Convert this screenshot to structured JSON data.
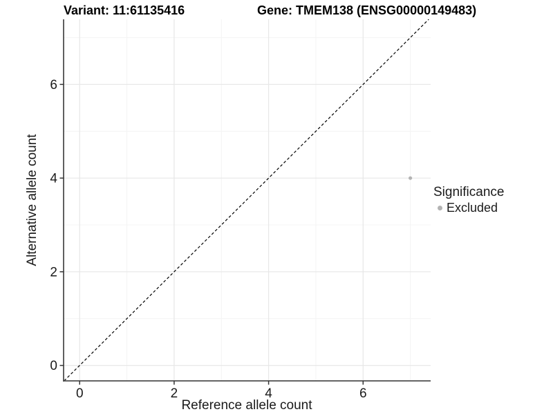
{
  "chart_data": {
    "type": "scatter",
    "title_variant": "Variant: 11:61135416",
    "title_gene": "Gene: TMEM138 (ENSG00000149483)",
    "xlabel": "Reference allele count",
    "ylabel": "Alternative allele count",
    "xticks": [
      0,
      2,
      4,
      6
    ],
    "yticks": [
      0,
      2,
      4,
      6
    ],
    "xticks_minor": [
      1,
      3,
      5,
      7
    ],
    "yticks_minor": [
      1,
      3,
      5,
      7
    ],
    "xlim": [
      -0.34,
      7.43
    ],
    "ylim": [
      -0.33,
      7.39
    ],
    "grid": "major and minor, light gray on white",
    "identity_line": {
      "equation": "y = x",
      "style": "dashed",
      "color": "#000000"
    },
    "points": [
      {
        "x": 7,
        "y": 4,
        "series": "Excluded"
      }
    ],
    "legend": {
      "title": "Significance",
      "position": "right",
      "entries": [
        {
          "label": "Excluded",
          "color": "#b3b3b3"
        }
      ]
    },
    "style": {
      "point": "#b3b3b3",
      "point_radius": 2.6,
      "grid_major": "#e8e8e8",
      "grid_minor": "#f4f4f4",
      "axis": "#4d4d4d",
      "tick": "#333333",
      "text": "#1a1a1a",
      "background": "#ffffff"
    }
  }
}
